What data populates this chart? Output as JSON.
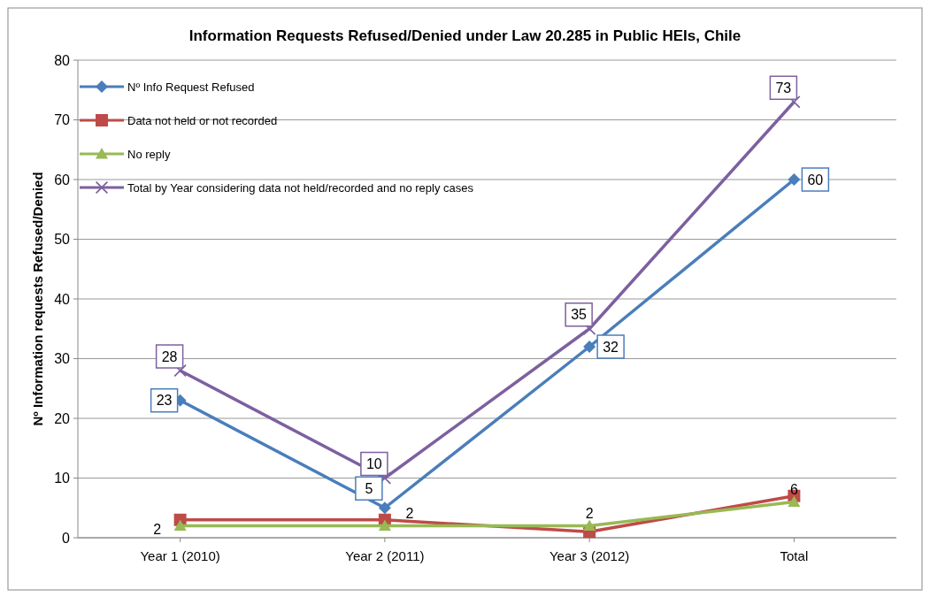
{
  "chart_data": {
    "type": "line",
    "title": "Information Requests Refused/Denied under Law 20.285 in Public HEIs, Chile",
    "ylabel": "Nº Information requests Refused/Denied",
    "categories": [
      "Year 1 (2010)",
      "Year 2 (2011)",
      "Year 3 (2012)",
      "Total"
    ],
    "series": [
      {
        "name": "Nº Info Request  Refused",
        "color": "#4a7ebb",
        "marker": "diamond",
        "values": [
          23,
          5,
          32,
          60
        ],
        "value_labels": [
          "23",
          "5",
          "32",
          "60"
        ]
      },
      {
        "name": "Data not held or not recorded",
        "color": "#be4b48",
        "marker": "square",
        "values": [
          3,
          3,
          1,
          7
        ]
      },
      {
        "name": "No reply",
        "color": "#98b954",
        "marker": "triangle",
        "values": [
          2,
          2,
          2,
          6
        ],
        "value_labels": [
          "2",
          "2",
          "2",
          "6"
        ]
      },
      {
        "name": "Total by Year considering data not held/recorded and no reply cases",
        "color": "#7d60a0",
        "marker": "cross",
        "values": [
          28,
          10,
          35,
          73
        ],
        "value_labels": [
          "28",
          "10",
          "35",
          "73"
        ]
      }
    ],
    "ylim": [
      0,
      80
    ],
    "yticks": [
      0,
      10,
      20,
      30,
      40,
      50,
      60,
      70,
      80
    ],
    "grid": "y",
    "legend": "top left"
  }
}
